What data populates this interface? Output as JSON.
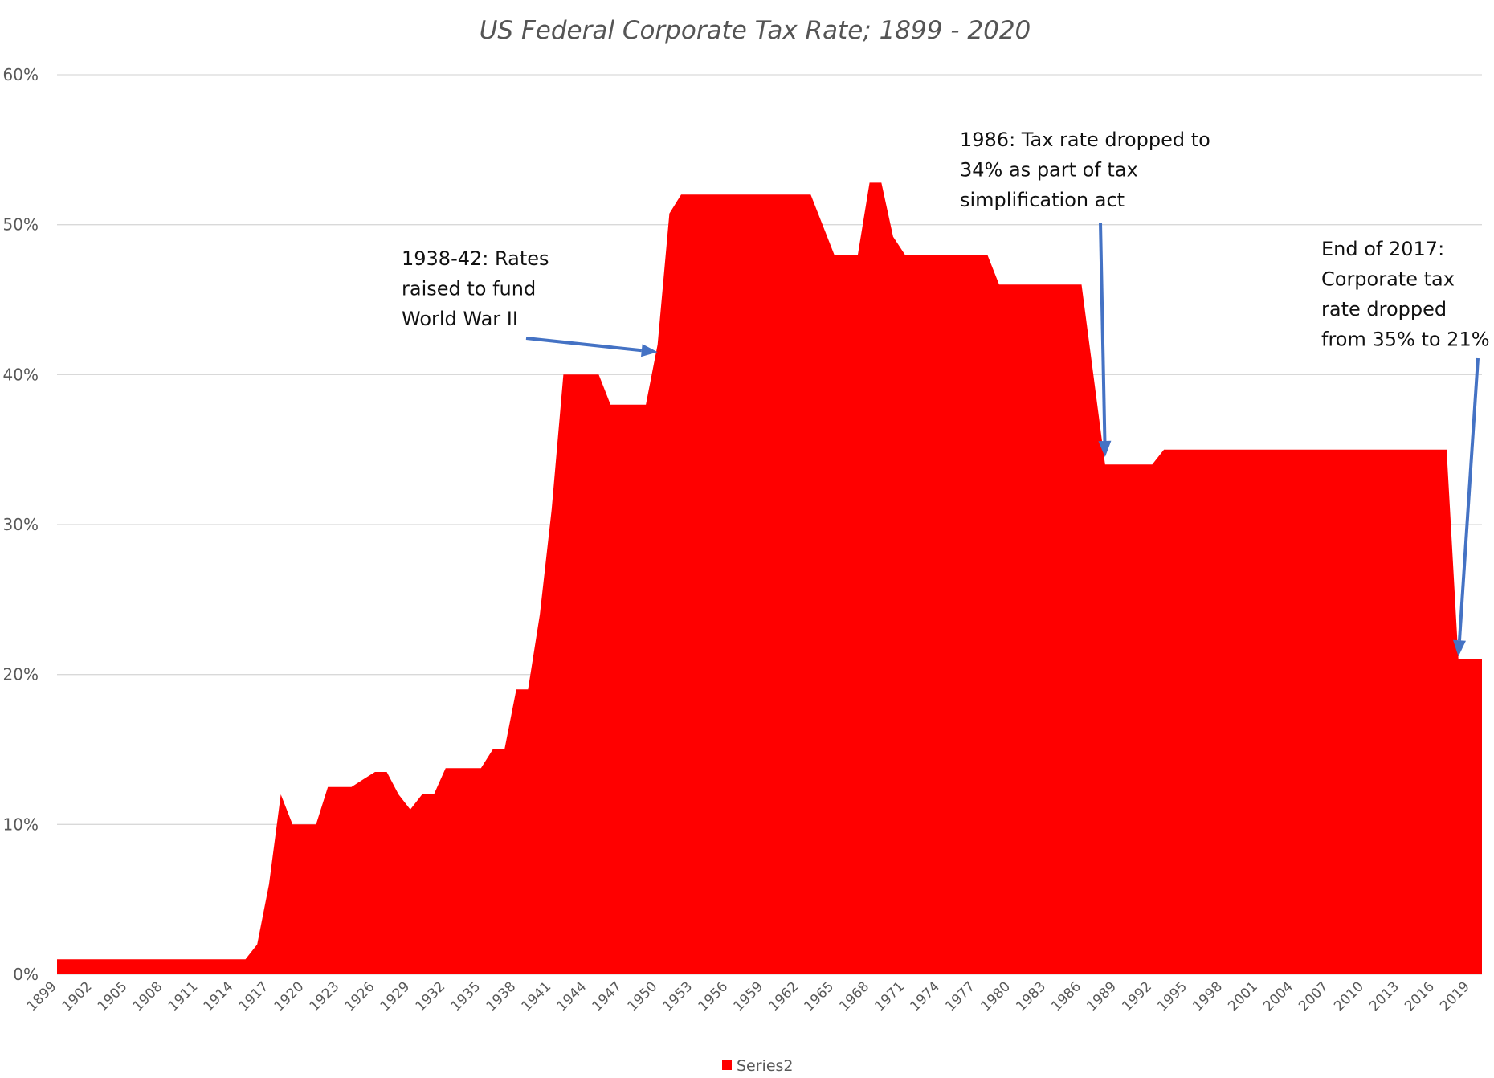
{
  "chart_data": {
    "type": "area",
    "title": "US Federal Corporate Tax Rate; 1899 - 2020",
    "xlabel": "",
    "ylabel": "",
    "ylim": [
      0,
      60
    ],
    "y_ticks": [
      "0%",
      "10%",
      "20%",
      "30%",
      "40%",
      "50%",
      "60%"
    ],
    "x_ticks": [
      "1899",
      "1902",
      "1905",
      "1908",
      "1911",
      "1914",
      "1917",
      "1920",
      "1923",
      "1926",
      "1929",
      "1932",
      "1935",
      "1938",
      "1941",
      "1944",
      "1947",
      "1950",
      "1953",
      "1956",
      "1959",
      "1962",
      "1965",
      "1968",
      "1971",
      "1974",
      "1977",
      "1980",
      "1983",
      "1986",
      "1989",
      "1992",
      "1995",
      "1998",
      "2001",
      "2004",
      "2007",
      "2010",
      "2013",
      "2016",
      "2019"
    ],
    "grid": true,
    "legend_position": "bottom",
    "series": [
      {
        "name": "Series2",
        "color": "#ff0000",
        "points": [
          [
            1899,
            1
          ],
          [
            1900,
            1
          ],
          [
            1901,
            1
          ],
          [
            1902,
            1
          ],
          [
            1903,
            1
          ],
          [
            1904,
            1
          ],
          [
            1905,
            1
          ],
          [
            1906,
            1
          ],
          [
            1907,
            1
          ],
          [
            1908,
            1
          ],
          [
            1909,
            1
          ],
          [
            1910,
            1
          ],
          [
            1911,
            1
          ],
          [
            1912,
            1
          ],
          [
            1913,
            1
          ],
          [
            1914,
            1
          ],
          [
            1915,
            1
          ],
          [
            1916,
            2
          ],
          [
            1917,
            6
          ],
          [
            1918,
            12
          ],
          [
            1919,
            10
          ],
          [
            1920,
            10
          ],
          [
            1921,
            10
          ],
          [
            1922,
            12.5
          ],
          [
            1923,
            12.5
          ],
          [
            1924,
            12.5
          ],
          [
            1925,
            13
          ],
          [
            1926,
            13.5
          ],
          [
            1927,
            13.5
          ],
          [
            1928,
            12
          ],
          [
            1929,
            11
          ],
          [
            1930,
            12
          ],
          [
            1931,
            12
          ],
          [
            1932,
            13.75
          ],
          [
            1933,
            13.75
          ],
          [
            1934,
            13.75
          ],
          [
            1935,
            13.75
          ],
          [
            1936,
            15
          ],
          [
            1937,
            15
          ],
          [
            1938,
            19
          ],
          [
            1939,
            19
          ],
          [
            1940,
            24
          ],
          [
            1941,
            31
          ],
          [
            1942,
            40
          ],
          [
            1943,
            40
          ],
          [
            1944,
            40
          ],
          [
            1945,
            40
          ],
          [
            1946,
            38
          ],
          [
            1947,
            38
          ],
          [
            1948,
            38
          ],
          [
            1949,
            38
          ],
          [
            1950,
            42
          ],
          [
            1951,
            50.75
          ],
          [
            1952,
            52
          ],
          [
            1953,
            52
          ],
          [
            1954,
            52
          ],
          [
            1955,
            52
          ],
          [
            1956,
            52
          ],
          [
            1957,
            52
          ],
          [
            1958,
            52
          ],
          [
            1959,
            52
          ],
          [
            1960,
            52
          ],
          [
            1961,
            52
          ],
          [
            1962,
            52
          ],
          [
            1963,
            52
          ],
          [
            1964,
            50
          ],
          [
            1965,
            48
          ],
          [
            1966,
            48
          ],
          [
            1967,
            48
          ],
          [
            1968,
            52.8
          ],
          [
            1969,
            52.8
          ],
          [
            1970,
            49.2
          ],
          [
            1971,
            48
          ],
          [
            1972,
            48
          ],
          [
            1973,
            48
          ],
          [
            1974,
            48
          ],
          [
            1975,
            48
          ],
          [
            1976,
            48
          ],
          [
            1977,
            48
          ],
          [
            1978,
            48
          ],
          [
            1979,
            46
          ],
          [
            1980,
            46
          ],
          [
            1981,
            46
          ],
          [
            1982,
            46
          ],
          [
            1983,
            46
          ],
          [
            1984,
            46
          ],
          [
            1985,
            46
          ],
          [
            1986,
            46
          ],
          [
            1987,
            40
          ],
          [
            1988,
            34
          ],
          [
            1989,
            34
          ],
          [
            1990,
            34
          ],
          [
            1991,
            34
          ],
          [
            1992,
            34
          ],
          [
            1993,
            35
          ],
          [
            1994,
            35
          ],
          [
            1995,
            35
          ],
          [
            1996,
            35
          ],
          [
            1997,
            35
          ],
          [
            1998,
            35
          ],
          [
            1999,
            35
          ],
          [
            2000,
            35
          ],
          [
            2001,
            35
          ],
          [
            2002,
            35
          ],
          [
            2003,
            35
          ],
          [
            2004,
            35
          ],
          [
            2005,
            35
          ],
          [
            2006,
            35
          ],
          [
            2007,
            35
          ],
          [
            2008,
            35
          ],
          [
            2009,
            35
          ],
          [
            2010,
            35
          ],
          [
            2011,
            35
          ],
          [
            2012,
            35
          ],
          [
            2013,
            35
          ],
          [
            2014,
            35
          ],
          [
            2015,
            35
          ],
          [
            2016,
            35
          ],
          [
            2017,
            35
          ],
          [
            2018,
            21
          ],
          [
            2019,
            21
          ],
          [
            2020,
            21
          ]
        ]
      }
    ],
    "annotations": [
      {
        "lines": [
          "1938-42: Rates",
          "raised to fund",
          "World War II"
        ],
        "arrow_to": [
          1950,
          41.5
        ],
        "arrow_color": "#4472c4"
      },
      {
        "lines": [
          "1986: Tax rate dropped to",
          "34% as part of tax",
          "simplification act"
        ],
        "arrow_to": [
          1988,
          34.5
        ],
        "arrow_color": "#4472c4"
      },
      {
        "lines": [
          "End of 2017:",
          "Corporate tax",
          "rate dropped",
          "from 35% to 21%"
        ],
        "arrow_to": [
          2018,
          21.2
        ],
        "arrow_color": "#4472c4"
      }
    ]
  }
}
